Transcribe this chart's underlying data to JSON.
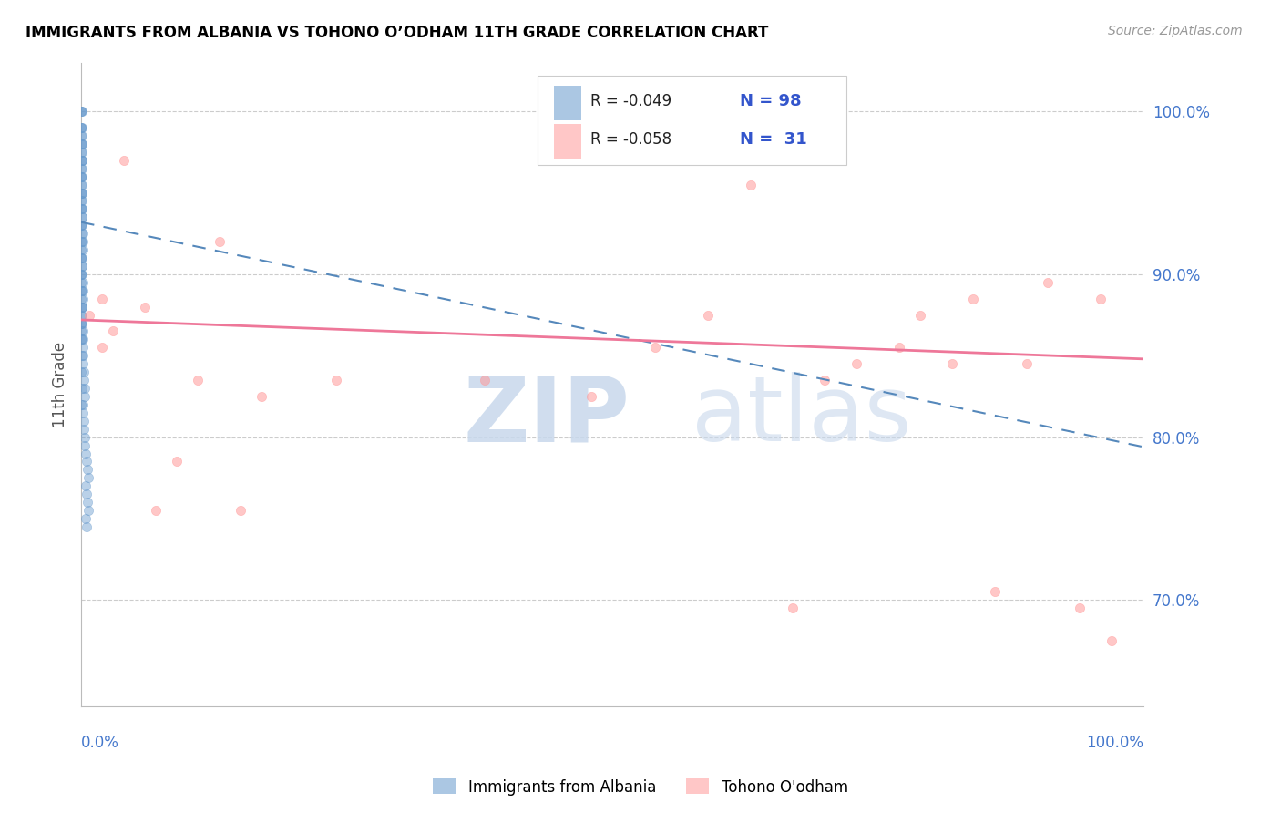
{
  "title": "IMMIGRANTS FROM ALBANIA VS TOHONO O’ODHAM 11TH GRADE CORRELATION CHART",
  "source": "Source: ZipAtlas.com",
  "ylabel": "11th Grade",
  "right_yticks": [
    100.0,
    90.0,
    80.0,
    70.0
  ],
  "legend_blue_r": "R = -0.049",
  "legend_blue_n": "N = 98",
  "legend_pink_r": "R = -0.058",
  "legend_pink_n": "N =  31",
  "blue_color": "#6699CC",
  "pink_color": "#FF9999",
  "blue_trend_color": "#5588BB",
  "pink_trend_color": "#EE7799",
  "blue_scatter_x": [
    0.0002,
    0.0003,
    0.0004,
    0.0002,
    0.0003,
    0.0005,
    0.0002,
    0.0004,
    0.0003,
    0.0002,
    0.0003,
    0.0004,
    0.0002,
    0.0003,
    0.0005,
    0.0002,
    0.0004,
    0.0003,
    0.0002,
    0.0003,
    0.0004,
    0.0002,
    0.0003,
    0.0005,
    0.0002,
    0.0004,
    0.0003,
    0.0002,
    0.0003,
    0.0004,
    0.0006,
    0.0007,
    0.0005,
    0.0008,
    0.0006,
    0.0007,
    0.0005,
    0.0008,
    0.0006,
    0.0007,
    0.001,
    0.0011,
    0.0012,
    0.0013,
    0.0014,
    0.0015,
    0.001,
    0.0011,
    0.0012,
    0.0013,
    0.0014,
    0.0015,
    0.001,
    0.0011,
    0.0012,
    0.0013,
    0.0014,
    0.0015,
    0.0018,
    0.002,
    0.0022,
    0.0025,
    0.003,
    0.0035,
    0.0018,
    0.002,
    0.0022,
    0.0025,
    0.003,
    0.0035,
    0.004,
    0.005,
    0.006,
    0.007,
    0.004,
    0.005,
    0.006,
    0.007,
    0.004,
    0.005,
    0.0002,
    0.0003,
    0.0004,
    0.0002,
    0.0003,
    0.0005,
    0.0002,
    0.0004,
    0.0003,
    0.0002,
    0.0003,
    0.0004,
    0.0002,
    0.0003,
    0.0005,
    0.0002,
    0.0004,
    0.0003
  ],
  "blue_scatter_y": [
    1.0,
    1.0,
    1.0,
    0.99,
    0.985,
    0.98,
    0.975,
    0.97,
    0.965,
    0.96,
    0.955,
    0.95,
    0.945,
    0.94,
    0.935,
    0.93,
    0.925,
    0.92,
    0.915,
    0.91,
    0.905,
    0.9,
    0.895,
    0.89,
    0.885,
    0.88,
    0.875,
    0.87,
    0.865,
    0.86,
    0.99,
    0.985,
    0.98,
    0.975,
    0.97,
    0.965,
    0.96,
    0.955,
    0.95,
    0.945,
    0.94,
    0.935,
    0.93,
    0.925,
    0.92,
    0.915,
    0.91,
    0.905,
    0.9,
    0.895,
    0.89,
    0.885,
    0.88,
    0.875,
    0.87,
    0.865,
    0.86,
    0.855,
    0.85,
    0.845,
    0.84,
    0.835,
    0.83,
    0.825,
    0.82,
    0.815,
    0.81,
    0.805,
    0.8,
    0.795,
    0.79,
    0.785,
    0.78,
    0.775,
    0.77,
    0.765,
    0.76,
    0.755,
    0.75,
    0.745,
    0.99,
    0.98,
    0.97,
    0.96,
    0.95,
    0.94,
    0.93,
    0.92,
    0.91,
    0.9,
    0.89,
    0.88,
    0.87,
    0.86,
    0.85,
    0.84,
    0.83,
    0.82
  ],
  "pink_scatter_x": [
    0.008,
    0.04,
    0.13,
    0.02,
    0.06,
    0.11,
    0.17,
    0.24,
    0.54,
    0.59,
    0.67,
    0.73,
    0.79,
    0.84,
    0.89,
    0.91,
    0.94,
    0.97,
    0.02,
    0.03,
    0.07,
    0.09,
    0.15,
    0.38,
    0.48,
    0.63,
    0.7,
    0.77,
    0.82,
    0.86,
    0.96
  ],
  "pink_scatter_y": [
    0.875,
    0.97,
    0.92,
    0.855,
    0.88,
    0.835,
    0.825,
    0.835,
    0.855,
    0.875,
    0.695,
    0.845,
    0.875,
    0.885,
    0.845,
    0.895,
    0.695,
    0.675,
    0.885,
    0.865,
    0.755,
    0.785,
    0.755,
    0.835,
    0.825,
    0.955,
    0.835,
    0.855,
    0.845,
    0.705,
    0.885
  ],
  "blue_trend_y_start": 0.932,
  "blue_trend_y_end": 0.794,
  "pink_trend_y_start": 0.872,
  "pink_trend_y_end": 0.848,
  "ymin": 0.635,
  "ymax": 1.03,
  "xmin": 0.0,
  "xmax": 1.0
}
